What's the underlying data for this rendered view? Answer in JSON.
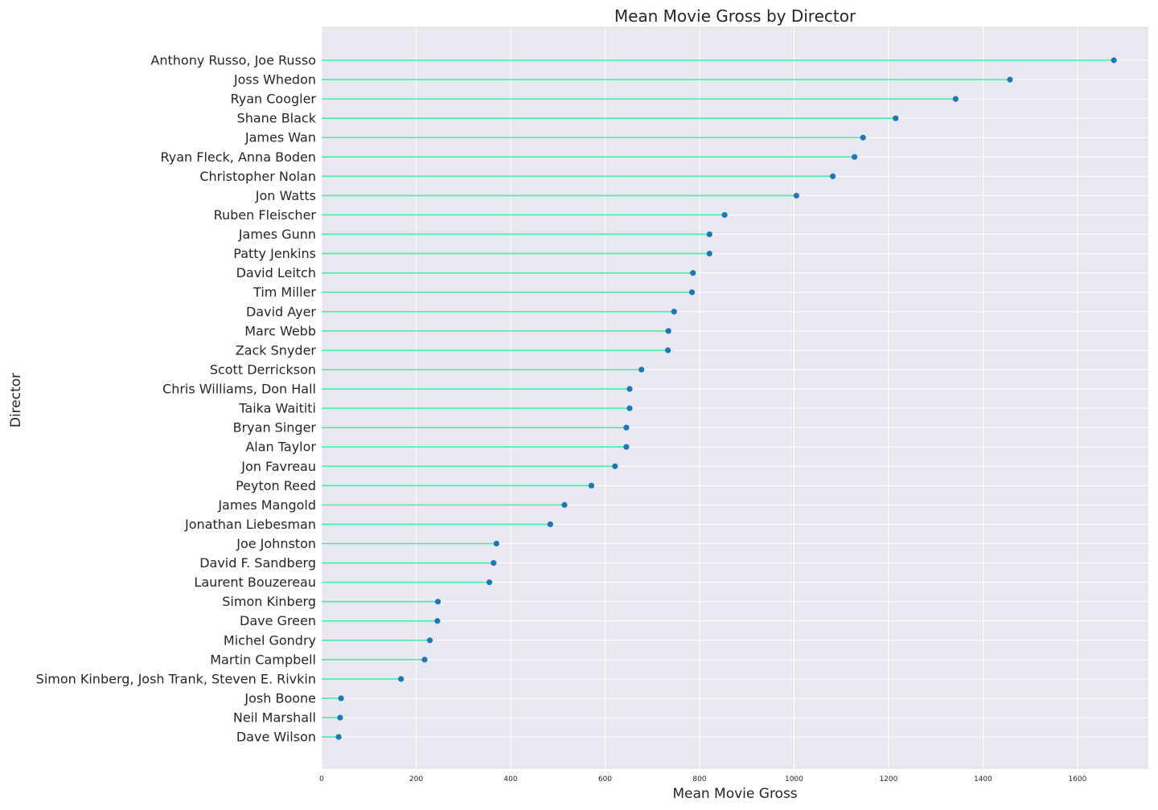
{
  "chart_data": {
    "type": "lollipop",
    "orientation": "horizontal",
    "title": "Mean Movie Gross by Director",
    "xlabel": "Mean Movie Gross",
    "ylabel": "Director",
    "xlim": [
      0,
      1750
    ],
    "xticks": [
      0,
      200,
      400,
      600,
      800,
      1000,
      1200,
      1400,
      1600
    ],
    "grid": true,
    "colors": {
      "background": "#e8e8f0",
      "grid": "#ffffff",
      "stem": "#44eeaa",
      "marker": "#1f77b4"
    },
    "categories": [
      "Anthony Russo, Joe Russo",
      "Joss Whedon",
      "Ryan Coogler",
      "Shane Black",
      "James Wan",
      "Ryan Fleck, Anna Boden",
      "Christopher Nolan",
      "Jon Watts",
      "Ruben Fleischer",
      "James Gunn",
      "Patty Jenkins",
      "David Leitch",
      "Tim Miller",
      "David Ayer",
      "Marc Webb",
      "Zack Snyder",
      "Scott Derrickson",
      "Chris Williams, Don Hall",
      "Taika Waititi",
      "Bryan Singer",
      "Alan Taylor",
      "Jon Favreau",
      "Peyton Reed",
      "James Mangold",
      "Jonathan Liebesman",
      "Joe Johnston",
      "David F. Sandberg",
      "Laurent Bouzereau",
      "Simon Kinberg",
      "Dave Green",
      "Michel Gondry",
      "Martin Campbell",
      "Simon Kinberg, Josh Trank, Steven E. Rivkin",
      "Josh Boone",
      "Neil Marshall",
      "Dave Wilson"
    ],
    "values": [
      1677,
      1457,
      1342,
      1215,
      1146,
      1128,
      1082,
      1005,
      853,
      821,
      821,
      786,
      784,
      746,
      734,
      733,
      677,
      652,
      652,
      645,
      645,
      621,
      571,
      514,
      484,
      370,
      364,
      355,
      246,
      245,
      229,
      218,
      168,
      41,
      39,
      36
    ]
  }
}
